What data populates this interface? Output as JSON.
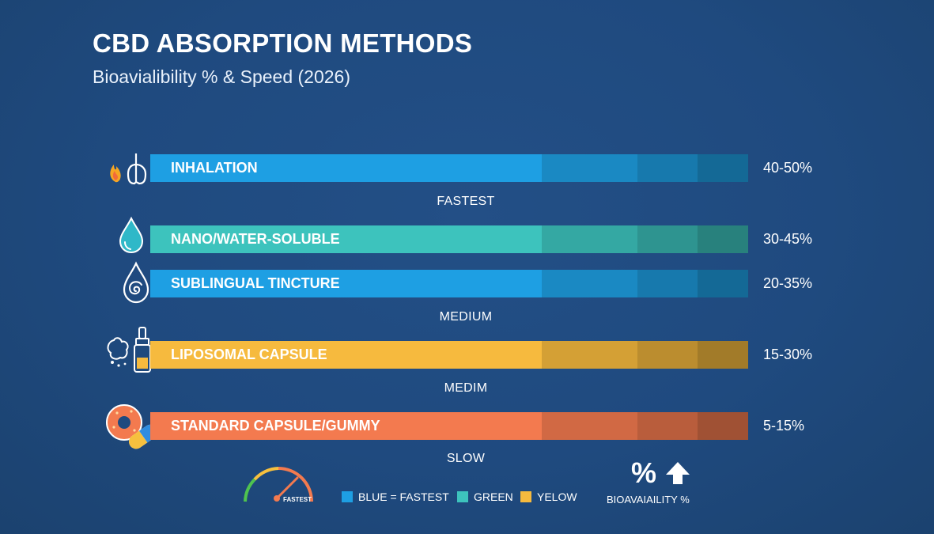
{
  "title": "CBD ABSORPTION METHODS",
  "subtitle": "Bioavialibility % & Speed (2026)",
  "colors": {
    "blue": "#1e9fe3",
    "teal": "#3dc3bd",
    "yellow": "#f6ba3e",
    "orange": "#f37a4f",
    "background": "#214c82"
  },
  "chart_data": {
    "type": "bar",
    "orientation": "horizontal",
    "categories": [
      "INHALATION",
      "NANO/WATER-SOLUBLE",
      "SUBLINGUAL TINCTURE",
      "LIPOSOMAL CAPSULE",
      "STANDARD CAPSULE/GUMMY"
    ],
    "value_labels": [
      "40-50%",
      "30-45%",
      "20-35%",
      "15-30%",
      "5-15%"
    ],
    "ranges": [
      [
        40,
        50
      ],
      [
        30,
        45
      ],
      [
        20,
        35
      ],
      [
        15,
        30
      ],
      [
        5,
        15
      ]
    ],
    "series_colors": [
      "blue",
      "teal",
      "blue",
      "yellow",
      "orange"
    ],
    "icons": [
      "lungs-flame-icon",
      "water-drop-icon",
      "swirl-drop-icon",
      "dropper-bottle-icon",
      "gummy-pill-icon"
    ],
    "speed_labels": [
      "FASTEST",
      "MEDIUM",
      "MEDIM",
      "SLOW"
    ],
    "speed_after_bar": [
      0,
      2,
      3,
      4
    ]
  },
  "legend": {
    "gauge_label": "FASTEST",
    "items": [
      {
        "label": "BLUE = FASTEST",
        "color": "blue"
      },
      {
        "label": "GREEN",
        "color": "teal"
      },
      {
        "label": "YELOW",
        "color": "yellow"
      }
    ],
    "bio_symbol": "%",
    "bio_label": "BIOAVAIAILITY %"
  }
}
